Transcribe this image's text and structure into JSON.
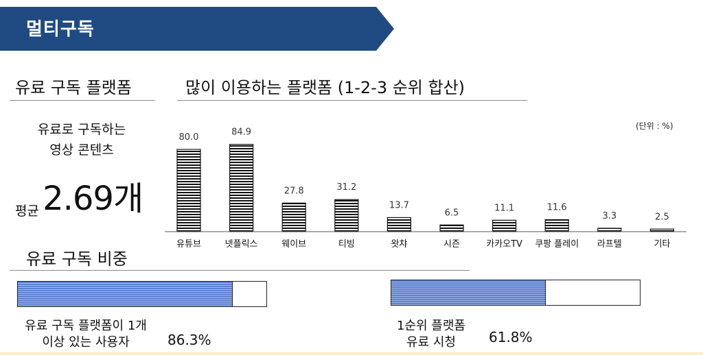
{
  "banner": {
    "title": "멀티구독",
    "color": "#1f4a82"
  },
  "left_panel": {
    "title": "유료 구독 플랫폼",
    "desc_line1": "유료로 구독하는",
    "desc_line2": "영상 콘텐츠",
    "avg_label": "평균",
    "avg_value": "2.69개"
  },
  "chart_section": {
    "title": "많이 이용하는 플랫폼 (1-2-3 순위 합산)",
    "unit_note": "(단위 : %)"
  },
  "chart_data": {
    "type": "bar",
    "title": "많이 이용하는 플랫폼 (1-2-3 순위 합산)",
    "unit": "(단위 : %)",
    "categories": [
      "유튜브",
      "넷플릭스",
      "웨이브",
      "티빙",
      "왓챠",
      "시즌",
      "카카오TV",
      "쿠팡 플레이",
      "라프텔",
      "기타"
    ],
    "values": [
      80.0,
      84.9,
      27.8,
      31.2,
      13.7,
      6.5,
      11.1,
      11.6,
      3.3,
      2.5
    ],
    "value_labels": [
      "80.0",
      "84.9",
      "27.8",
      "31.2",
      "13.7",
      "6.5",
      "11.1",
      "11.6",
      "3.3",
      "2.5"
    ],
    "ylim": [
      0,
      100
    ],
    "grid": false,
    "bar_pattern": "horizontal-stripes"
  },
  "share_section": {
    "title": "유료 구독 비중",
    "items": [
      {
        "label_line1": "유료 구독 플랫폼이 1개",
        "label_line2": "이상 있는 사용자",
        "value": "86.3%",
        "ratio": 0.863
      },
      {
        "label_line1": "1순위 플랫폼",
        "label_line2": "유료 시청",
        "value": "61.8%",
        "ratio": 0.618
      }
    ],
    "fill_color": "#5b7fd1"
  }
}
